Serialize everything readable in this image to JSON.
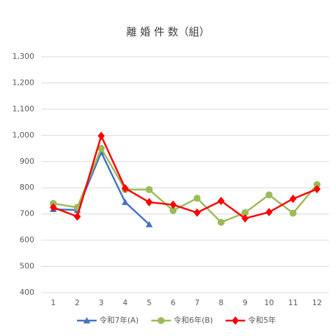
{
  "chart_data": {
    "type": "line",
    "title": "離 婚 件 数（組）",
    "categories": [
      "1",
      "2",
      "3",
      "4",
      "5",
      "6",
      "7",
      "8",
      "9",
      "10",
      "11",
      "12"
    ],
    "series": [
      {
        "name": "令和7年(A)",
        "color": "#4472c4",
        "marker": "triangle",
        "values": [
          718,
          715,
          935,
          745,
          660,
          null,
          null,
          null,
          null,
          null,
          null,
          null
        ]
      },
      {
        "name": "令和6年(B)",
        "color": "#9bbb59",
        "marker": "circle",
        "values": [
          740,
          725,
          950,
          793,
          793,
          713,
          760,
          668,
          705,
          773,
          703,
          812
        ]
      },
      {
        "name": "令和5年",
        "color": "#ff0000",
        "marker": "diamond",
        "values": [
          725,
          690,
          998,
          798,
          745,
          735,
          705,
          750,
          683,
          707,
          758,
          795
        ]
      }
    ],
    "ylim": [
      400,
      1300
    ],
    "yticks": [
      400,
      500,
      600,
      700,
      800,
      900,
      {
        "value": 1000,
        "label": "1,000"
      },
      {
        "value": 1100,
        "label": "1,100"
      },
      {
        "value": 1200,
        "label": "1,200"
      },
      {
        "value": 1300,
        "label": "1,300"
      }
    ],
    "grid": true,
    "legend": "bottom"
  }
}
